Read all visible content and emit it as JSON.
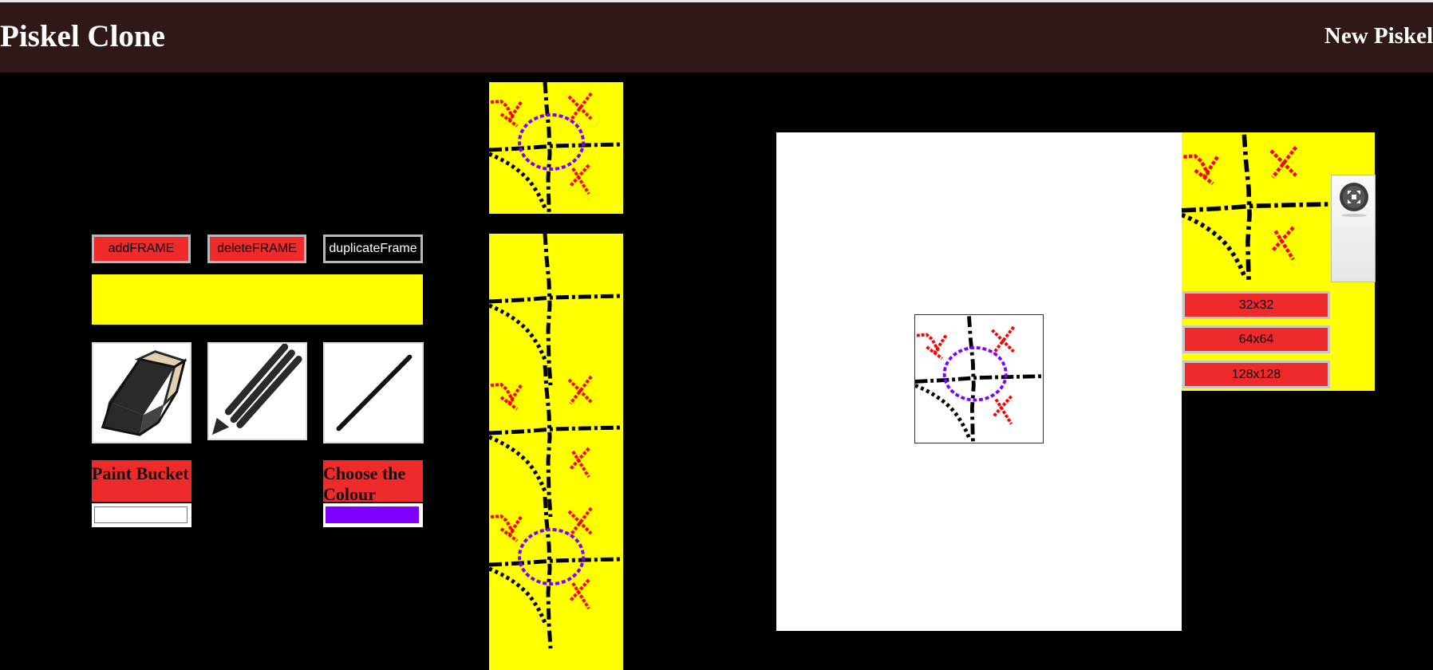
{
  "header": {
    "app_title": "Piskel Clone",
    "document_title": "New Piskel"
  },
  "frame_buttons": {
    "add": "addFRAME",
    "delete": "deleteFRAME",
    "duplicate": "duplicateFrame"
  },
  "tools": {
    "eraser_icon": "eraser-icon",
    "pencil_icon": "pencil-icon",
    "line_icon": "line-icon",
    "paint_bucket_label": "Paint Bucket",
    "choose_colour_label": "Choose the Colour",
    "paint_bucket_color": "#ffffff",
    "chosen_colour": "#8000ff"
  },
  "preview": {
    "sizes": [
      "32x32",
      "64x64",
      "128x128"
    ],
    "fullscreen_icon": "fullscreen-icon"
  },
  "colors": {
    "header_bg": "#2e1818",
    "accent_red": "#ee2a2a",
    "frame_yellow": "#ffff00",
    "drawing_black": "#000000",
    "drawing_red": "#ff0000",
    "drawing_purple": "#8000ff"
  }
}
